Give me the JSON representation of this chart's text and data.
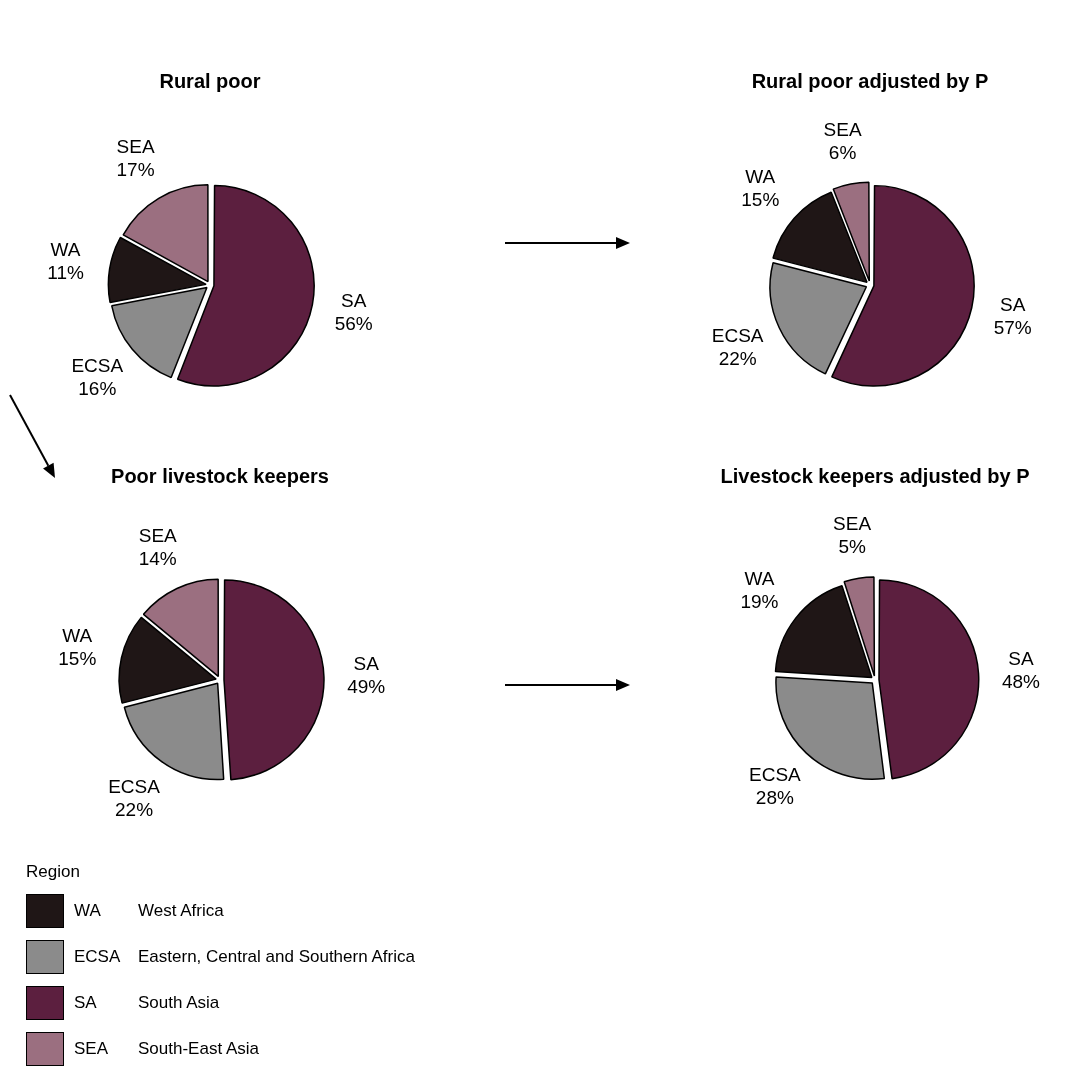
{
  "chart_data": [
    {
      "type": "pie",
      "title": "Rural poor",
      "categories": [
        "SA",
        "ECSA",
        "WA",
        "SEA"
      ],
      "values": [
        56,
        16,
        11,
        17
      ],
      "value_labels": [
        "56%",
        "16%",
        "11%",
        "17%"
      ],
      "colors": [
        "#5c1f3f",
        "#8b8b8b",
        "#1f1616",
        "#9b6f80"
      ]
    },
    {
      "type": "pie",
      "title": "Rural poor adjusted by P",
      "categories": [
        "SA",
        "ECSA",
        "WA",
        "SEA"
      ],
      "values": [
        57,
        22,
        15,
        6
      ],
      "value_labels": [
        "57%",
        "22%",
        "15%",
        "6%"
      ],
      "colors": [
        "#5c1f3f",
        "#8b8b8b",
        "#1f1616",
        "#9b6f80"
      ]
    },
    {
      "type": "pie",
      "title": "Poor livestock keepers",
      "categories": [
        "SA",
        "ECSA",
        "WA",
        "SEA"
      ],
      "values": [
        49,
        22,
        15,
        14
      ],
      "value_labels": [
        "49%",
        "22%",
        "15%",
        "14%"
      ],
      "colors": [
        "#5c1f3f",
        "#8b8b8b",
        "#1f1616",
        "#9b6f80"
      ]
    },
    {
      "type": "pie",
      "title": "Livestock keepers adjusted by P",
      "categories": [
        "SA",
        "ECSA",
        "WA",
        "SEA"
      ],
      "values": [
        48,
        28,
        19,
        5
      ],
      "value_labels": [
        "48%",
        "28%",
        "19%",
        "5%"
      ],
      "colors": [
        "#5c1f3f",
        "#8b8b8b",
        "#1f1616",
        "#9b6f80"
      ]
    },
    {
      "type": "other",
      "legend_title": "Region",
      "categories": [
        "WA",
        "ECSA",
        "SA",
        "SEA"
      ],
      "colors": [
        "#1f1616",
        "#8b8b8b",
        "#5c1f3f",
        "#9b6f80"
      ],
      "annotations": [
        "West Africa",
        "Eastern, Central and Southern Africa",
        "South Asia",
        "South-East Asia"
      ]
    }
  ]
}
